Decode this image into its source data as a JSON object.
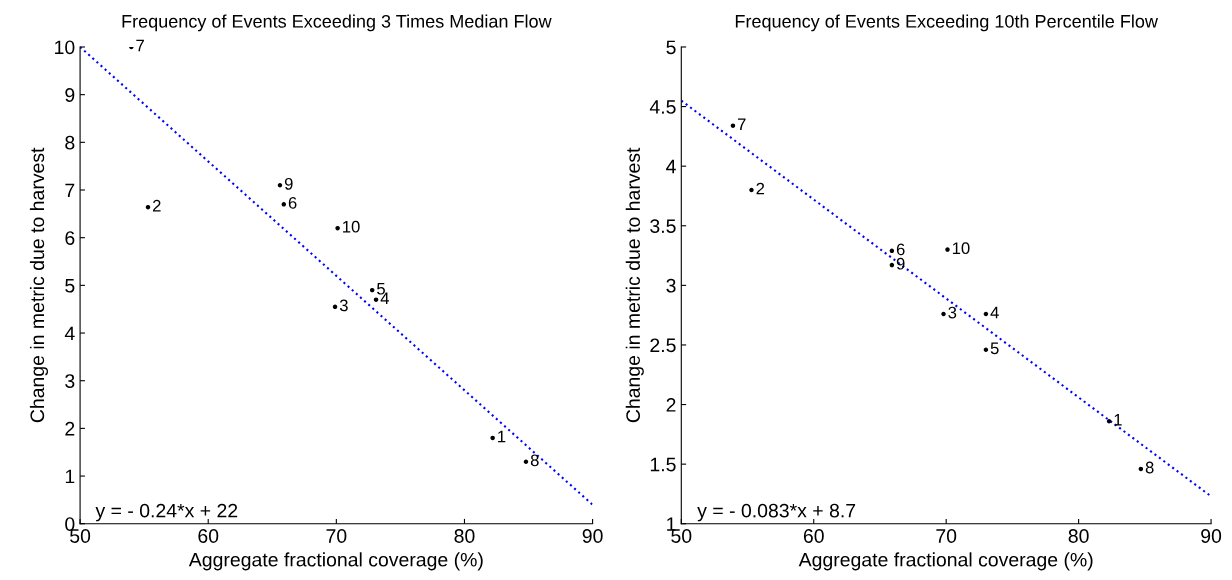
{
  "chart_data": [
    {
      "type": "scatter",
      "title": "Frequency of Events Exceeding 3 Times Median Flow",
      "xlabel": "Aggregate fractional coverage (%)",
      "ylabel": "Change in metric due to harvest",
      "xlim": [
        50,
        90
      ],
      "ylim": [
        0,
        10
      ],
      "xticks": [
        50,
        60,
        70,
        80,
        90
      ],
      "yticks": [
        0,
        1,
        2,
        3,
        4,
        5,
        6,
        7,
        8,
        9,
        10
      ],
      "grid": false,
      "legend": false,
      "series": [
        {
          "marker": "circle",
          "color": "#000000",
          "x": [
            82.2,
            55.3,
            69.9,
            73.1,
            72.8,
            65.9,
            54.0,
            84.8,
            65.6,
            70.1
          ],
          "values": [
            1.8,
            6.64,
            4.55,
            4.7,
            4.9,
            6.7,
            10.0,
            1.3,
            7.1,
            6.2
          ]
        },
        {
          "type": "line",
          "line_style": "dotted",
          "color": "#0000ff",
          "x": [
            50,
            90
          ],
          "values": [
            10,
            0.4
          ]
        }
      ],
      "annotations": [
        {
          "text": "1",
          "x": 82.2,
          "y": 1.8
        },
        {
          "text": "2",
          "x": 55.3,
          "y": 6.64
        },
        {
          "text": "3",
          "x": 69.9,
          "y": 4.55
        },
        {
          "text": "4",
          "x": 73.1,
          "y": 4.7
        },
        {
          "text": "5",
          "x": 72.8,
          "y": 4.9
        },
        {
          "text": "6",
          "x": 65.9,
          "y": 6.7
        },
        {
          "text": "7",
          "x": 54.0,
          "y": 10.0
        },
        {
          "text": "8",
          "x": 84.8,
          "y": 1.3
        },
        {
          "text": "9",
          "x": 65.6,
          "y": 7.1
        },
        {
          "text": "10",
          "x": 70.1,
          "y": 6.2
        },
        "y = - 0.24*x + 22"
      ]
    },
    {
      "type": "scatter",
      "title": "Frequency of Events Exceeding 10th Percentile Flow",
      "xlabel": "Aggregate fractional coverage (%)",
      "ylabel": "Change in metric due to harvest",
      "xlim": [
        50,
        90
      ],
      "ylim": [
        1,
        5
      ],
      "xticks": [
        50,
        60,
        70,
        80,
        90
      ],
      "yticks": [
        1,
        1.5,
        2,
        2.5,
        3,
        3.5,
        4,
        4.5,
        5
      ],
      "grid": false,
      "legend": false,
      "series": [
        {
          "marker": "circle",
          "color": "#000000",
          "x": [
            82.3,
            55.3,
            69.8,
            73.0,
            73.0,
            65.9,
            53.9,
            84.7,
            65.9,
            70.1
          ],
          "values": [
            1.86,
            3.8,
            2.76,
            2.76,
            2.46,
            3.29,
            4.34,
            1.46,
            3.17,
            3.3
          ]
        },
        {
          "type": "line",
          "line_style": "dotted",
          "color": "#0000ff",
          "x": [
            50,
            90
          ],
          "values": [
            4.55,
            1.23
          ]
        }
      ],
      "annotations": [
        {
          "text": "1",
          "x": 82.3,
          "y": 1.86
        },
        {
          "text": "2",
          "x": 55.3,
          "y": 3.8
        },
        {
          "text": "3",
          "x": 69.8,
          "y": 2.76
        },
        {
          "text": "4",
          "x": 73.0,
          "y": 2.76
        },
        {
          "text": "5",
          "x": 73.0,
          "y": 2.46
        },
        {
          "text": "6",
          "x": 65.9,
          "y": 3.29
        },
        {
          "text": "7",
          "x": 53.9,
          "y": 4.34
        },
        {
          "text": "8",
          "x": 84.7,
          "y": 1.46
        },
        {
          "text": "9",
          "x": 65.9,
          "y": 3.17
        },
        {
          "text": "10",
          "x": 70.1,
          "y": 3.3
        },
        "y = - 0.083*x + 8.7"
      ]
    }
  ]
}
